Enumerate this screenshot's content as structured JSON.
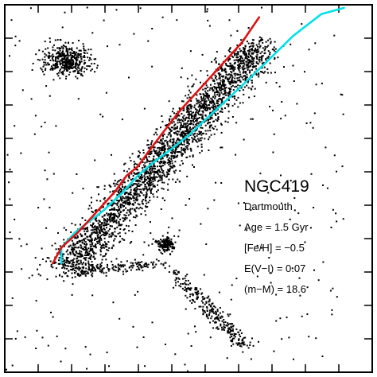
{
  "chart_data": {
    "type": "scatter",
    "title": "NGC419",
    "annotations": [
      "Dartmouth",
      "Age = 1.5 Gyr",
      "[Fe/H] = −0.5",
      "E(V−I) = 0.07",
      "(m−M) = 18.6"
    ],
    "grid": false,
    "colors": {
      "points": "#000000",
      "isochrone_red": "#e01010",
      "isochrone_cyan": "#00e0e8",
      "axes": "#000000"
    },
    "series": [
      {
        "type": "line",
        "color": "#00e0e8",
        "x": [
          0.4,
          0.4,
          0.45,
          0.55,
          0.62,
          0.67,
          0.72,
          0.78,
          0.85,
          0.92,
          0.98,
          1.05,
          1.13,
          1.22,
          1.32,
          1.4
        ],
        "y": [
          9.3,
          8.8,
          8.3,
          7.6,
          7.0,
          6.5,
          6.1,
          5.7,
          5.2,
          4.6,
          4.1,
          3.5,
          2.8,
          2.0,
          1.3,
          1.1
        ]
      },
      {
        "type": "line",
        "color": "#e01010",
        "x": [
          0.37,
          0.4,
          0.46,
          0.53,
          0.59,
          0.63,
          0.67,
          0.71,
          0.76,
          0.82,
          0.88,
          0.94,
          0.99,
          1.04,
          1.1
        ],
        "y": [
          9.3,
          8.8,
          8.3,
          7.6,
          7.0,
          6.5,
          6.2,
          5.7,
          5.1,
          4.4,
          3.8,
          3.2,
          2.7,
          2.2,
          1.4
        ]
      }
    ],
    "points": {
      "seed": 419,
      "main_sequence": {
        "count": 2600,
        "x_start": 0.42,
        "x_end": 1.1,
        "y_start": 9.5,
        "y_end": 2.3,
        "spread": 0.045
      },
      "turnoff_blob": {
        "count": 420,
        "x": 0.42,
        "y": 2.8,
        "sx": 0.04,
        "sy": 0.25
      },
      "subgiant": {
        "count": 160,
        "x_start": 0.45,
        "x_end": 0.75,
        "y_start": 9.6,
        "y_end": 9.3,
        "spread": 0.02
      },
      "red_clump": {
        "count": 150,
        "x": 0.77,
        "y": 8.7,
        "sx": 0.015,
        "sy": 0.12
      },
      "rgb": {
        "count": 280,
        "x_start": 0.8,
        "x_end": 1.05,
        "y_start": 9.6,
        "y_end": 12.0,
        "spread": 0.02
      },
      "field": {
        "count": 300,
        "x": [
          0.2,
          1.4
        ],
        "y": [
          1.0,
          13.0
        ]
      }
    },
    "xlim": [
      0.2,
      1.5
    ],
    "ylim": [
      12.8,
      1.0
    ]
  }
}
